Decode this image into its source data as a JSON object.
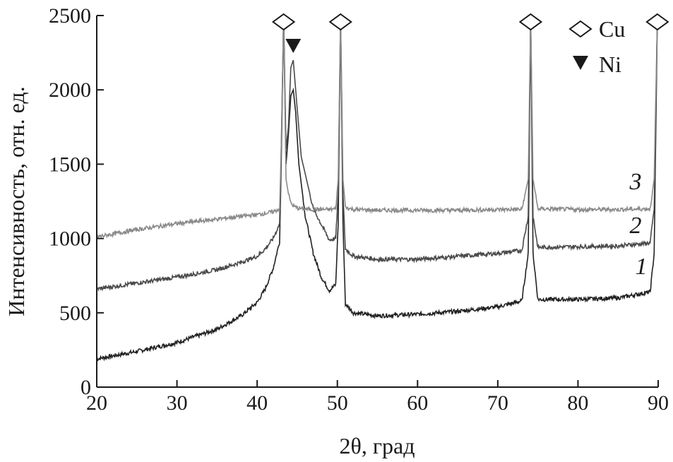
{
  "chart_data": {
    "type": "line",
    "title": "",
    "xlabel": "2θ, град",
    "ylabel": "Интенсивность, отн. ед.",
    "xlim": [
      20,
      90
    ],
    "ylim": [
      0,
      2500
    ],
    "x_ticks": [
      20,
      30,
      40,
      50,
      60,
      70,
      80,
      90
    ],
    "y_ticks": [
      0,
      500,
      1000,
      1500,
      2000,
      2500
    ],
    "x_tick_labels": [
      "20",
      "30",
      "40",
      "50",
      "60",
      "70",
      "80",
      "90"
    ],
    "y_tick_labels": [
      "0",
      "500",
      "1000",
      "1500",
      "2000",
      "2500"
    ],
    "grid": false,
    "legend": {
      "placement": "top-right",
      "entries": [
        {
          "marker": "open-diamond",
          "label": "Cu"
        },
        {
          "marker": "filled-down-triangle",
          "label": "Ni"
        }
      ]
    },
    "peak_markers": {
      "Cu": [
        43.3,
        50.4,
        74.1,
        89.9
      ],
      "Ni": [
        44.5
      ]
    },
    "series": [
      {
        "label": "1",
        "color": "#222222",
        "x": [
          20,
          25,
          30,
          35,
          38,
          40,
          41,
          42,
          42.8,
          43.0,
          43.3,
          43.6,
          43.9,
          44.2,
          44.5,
          44.8,
          45.2,
          46,
          47,
          48,
          49,
          49.8,
          50.1,
          50.4,
          50.7,
          51.0,
          52,
          55,
          60,
          65,
          70,
          73,
          73.8,
          74.1,
          74.4,
          75,
          80,
          85,
          89,
          89.5,
          89.9
        ],
        "y": [
          190,
          240,
          300,
          390,
          480,
          570,
          660,
          800,
          980,
          1500,
          2500,
          1500,
          1700,
          1960,
          2000,
          1850,
          1500,
          1150,
          900,
          740,
          650,
          690,
          1100,
          2500,
          1100,
          560,
          500,
          480,
          490,
          510,
          540,
          580,
          900,
          2500,
          900,
          590,
          590,
          600,
          640,
          900,
          2500
        ]
      },
      {
        "label": "2",
        "color": "#4a4a4a",
        "x": [
          20,
          25,
          30,
          35,
          38,
          40,
          41,
          42,
          42.8,
          43.0,
          43.3,
          43.6,
          43.9,
          44.2,
          44.5,
          44.8,
          45.5,
          47,
          49,
          49.8,
          50.1,
          50.4,
          50.7,
          51.0,
          52,
          55,
          60,
          65,
          70,
          73,
          73.8,
          74.1,
          74.4,
          75,
          80,
          85,
          89,
          89.5,
          89.9
        ],
        "y": [
          660,
          700,
          740,
          790,
          840,
          880,
          930,
          1000,
          1100,
          1600,
          2500,
          1600,
          1750,
          2150,
          2200,
          2000,
          1550,
          1200,
          990,
          1000,
          1300,
          2500,
          1300,
          930,
          880,
          860,
          860,
          880,
          900,
          920,
          1150,
          2500,
          1150,
          940,
          945,
          950,
          970,
          1200,
          2500
        ]
      },
      {
        "label": "3",
        "color": "#8a8a8a",
        "x": [
          20,
          25,
          30,
          35,
          38,
          40,
          41,
          42,
          42.8,
          43.0,
          43.3,
          43.6,
          43.9,
          44.2,
          44.5,
          44.8,
          45.5,
          47,
          49,
          49.8,
          50.1,
          50.4,
          50.7,
          51.0,
          52,
          55,
          60,
          65,
          70,
          73,
          73.8,
          74.1,
          74.4,
          75,
          80,
          85,
          89,
          89.5,
          89.9
        ],
        "y": [
          1010,
          1060,
          1100,
          1130,
          1150,
          1160,
          1170,
          1180,
          1200,
          1600,
          2500,
          1400,
          1300,
          1240,
          1220,
          1210,
          1200,
          1195,
          1195,
          1200,
          1400,
          2500,
          1400,
          1210,
          1195,
          1190,
          1190,
          1190,
          1195,
          1195,
          1400,
          2500,
          1400,
          1200,
          1195,
          1195,
          1200,
          1400,
          2500
        ]
      }
    ]
  }
}
